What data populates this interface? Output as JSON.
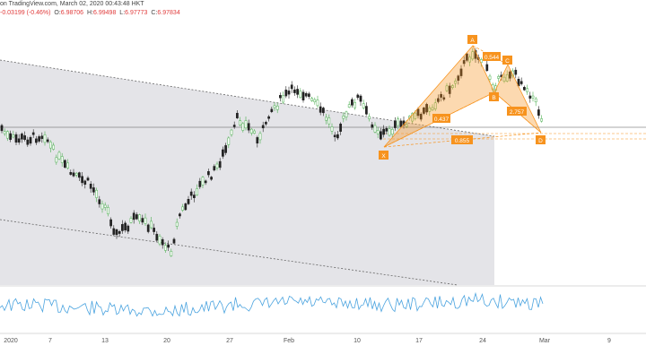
{
  "header": {
    "source": "on TradingView.com, March 02, 2020 00:43:48 HKT",
    "change": "-0.03199 (-0.46%)",
    "ohlc": [
      {
        "label": "O:",
        "value": "6.98706"
      },
      {
        "label": "H:",
        "value": "6.99498"
      },
      {
        "label": "L:",
        "value": "6.97773"
      },
      {
        "label": "C:",
        "value": "6.97834"
      }
    ]
  },
  "colors": {
    "bull": "#4caf50",
    "bear": "#222222",
    "pattern": "#f7931e",
    "oscillator": "#4aa3df",
    "channel_fill": "#e4e4e8"
  },
  "chart_data": {
    "type": "candlestick",
    "pattern_points": [
      {
        "name": "X",
        "date": "2020-02-13"
      },
      {
        "name": "A",
        "date": "2020-02-21"
      },
      {
        "name": "B",
        "date": "2020-02-24"
      },
      {
        "name": "C",
        "date": "2020-02-25"
      },
      {
        "name": "D",
        "date": "2020-02-29"
      }
    ],
    "pattern_ratios": [
      "0.437",
      "0.544",
      "2.757",
      "0.855"
    ],
    "x_tick_labels": [
      "2020",
      "7",
      "13",
      "20",
      "27",
      "Feb",
      "10",
      "17",
      "24",
      "Mar",
      "9"
    ]
  }
}
